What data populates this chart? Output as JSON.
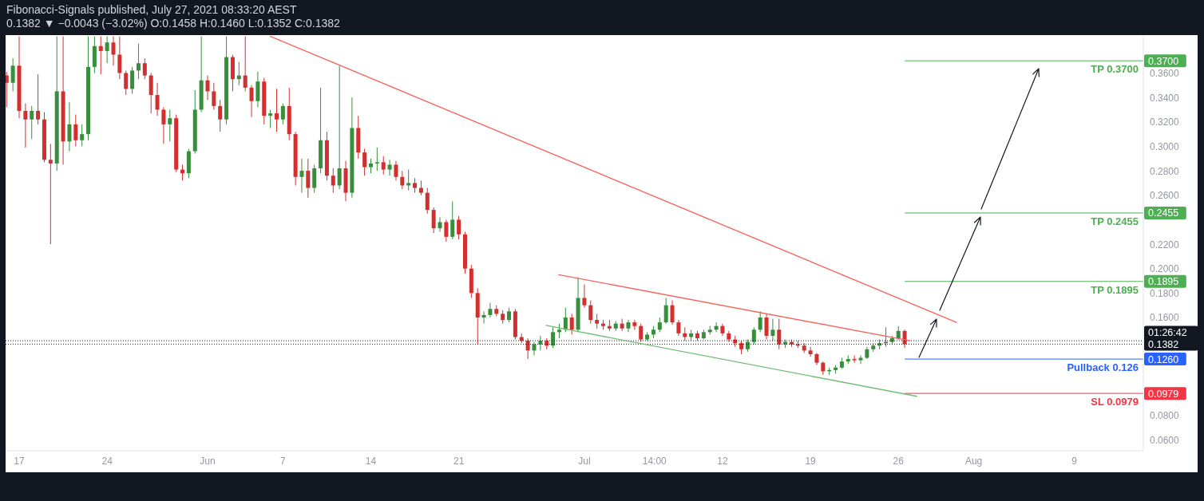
{
  "chart_data": {
    "type": "candlestick",
    "title": "Fibonacci-Signals published, July 27, 2021 08:33:20 AEST",
    "subtitle": "0.1382 ▼ −0.0043 (−3.02%) O:0.1458 H:0.1460 L:0.1352 C:0.1382",
    "x": [
      "2021-05-16T00:00",
      "2021-05-16T12:00",
      "2021-05-17T00:00",
      "2021-05-17T12:00",
      "2021-05-18T00:00",
      "2021-05-18T12:00",
      "2021-05-19T00:00",
      "2021-05-19T12:00",
      "2021-05-20T00:00",
      "2021-05-20T12:00",
      "2021-05-21T00:00",
      "2021-05-21T12:00",
      "2021-05-22T00:00",
      "2021-05-22T12:00",
      "2021-05-23T00:00",
      "2021-05-23T12:00",
      "2021-05-24T00:00",
      "2021-05-24T12:00",
      "2021-05-25T00:00",
      "2021-05-25T12:00",
      "2021-05-26T00:00",
      "2021-05-26T12:00",
      "2021-05-27T00:00",
      "2021-05-27T12:00",
      "2021-05-28T00:00",
      "2021-05-28T12:00",
      "2021-05-29T00:00",
      "2021-05-29T12:00",
      "2021-05-30T00:00",
      "2021-05-30T12:00",
      "2021-05-31T00:00",
      "2021-05-31T12:00",
      "2021-06-01T00:00",
      "2021-06-01T12:00",
      "2021-06-02T00:00",
      "2021-06-02T12:00",
      "2021-06-03T00:00",
      "2021-06-03T12:00",
      "2021-06-04T00:00",
      "2021-06-04T12:00",
      "2021-06-05T00:00",
      "2021-06-05T12:00",
      "2021-06-06T00:00",
      "2021-06-06T12:00",
      "2021-06-07T00:00",
      "2021-06-07T12:00",
      "2021-06-08T00:00",
      "2021-06-08T12:00",
      "2021-06-09T00:00",
      "2021-06-09T12:00",
      "2021-06-10T00:00",
      "2021-06-10T12:00",
      "2021-06-11T00:00",
      "2021-06-11T12:00",
      "2021-06-12T00:00",
      "2021-06-12T12:00",
      "2021-06-13T00:00",
      "2021-06-13T12:00",
      "2021-06-14T00:00",
      "2021-06-14T12:00",
      "2021-06-15T00:00",
      "2021-06-15T12:00",
      "2021-06-16T00:00",
      "2021-06-16T12:00",
      "2021-06-17T00:00",
      "2021-06-17T12:00",
      "2021-06-18T00:00",
      "2021-06-18T12:00",
      "2021-06-19T00:00",
      "2021-06-19T12:00",
      "2021-06-20T00:00",
      "2021-06-20T12:00",
      "2021-06-21T00:00",
      "2021-06-21T12:00",
      "2021-06-22T00:00",
      "2021-06-22T12:00",
      "2021-06-23T00:00",
      "2021-06-23T12:00",
      "2021-06-24T00:00",
      "2021-06-24T12:00",
      "2021-06-25T00:00",
      "2021-06-25T12:00",
      "2021-06-26T00:00",
      "2021-06-26T12:00",
      "2021-06-27T00:00",
      "2021-06-27T12:00",
      "2021-06-28T00:00",
      "2021-06-28T12:00",
      "2021-06-29T00:00",
      "2021-06-29T12:00",
      "2021-06-30T00:00",
      "2021-06-30T12:00",
      "2021-07-01T00:00",
      "2021-07-01T12:00",
      "2021-07-02T00:00",
      "2021-07-02T12:00",
      "2021-07-03T00:00",
      "2021-07-03T12:00",
      "2021-07-04T00:00",
      "2021-07-04T12:00",
      "2021-07-05T00:00",
      "2021-07-05T12:00",
      "2021-07-06T00:00",
      "2021-07-06T12:00",
      "2021-07-07T00:00",
      "2021-07-07T12:00",
      "2021-07-08T00:00",
      "2021-07-08T12:00",
      "2021-07-09T00:00",
      "2021-07-09T12:00",
      "2021-07-10T00:00",
      "2021-07-10T12:00",
      "2021-07-11T00:00",
      "2021-07-11T12:00",
      "2021-07-12T00:00",
      "2021-07-12T12:00",
      "2021-07-13T00:00",
      "2021-07-13T12:00",
      "2021-07-14T00:00",
      "2021-07-14T12:00",
      "2021-07-15T00:00",
      "2021-07-15T12:00",
      "2021-07-16T00:00",
      "2021-07-16T12:00",
      "2021-07-17T00:00",
      "2021-07-17T12:00",
      "2021-07-18T00:00",
      "2021-07-18T12:00",
      "2021-07-19T00:00",
      "2021-07-19T12:00",
      "2021-07-20T00:00",
      "2021-07-20T12:00",
      "2021-07-21T00:00",
      "2021-07-21T12:00",
      "2021-07-22T00:00",
      "2021-07-22T12:00",
      "2021-07-23T00:00",
      "2021-07-23T12:00",
      "2021-07-24T00:00",
      "2021-07-24T12:00",
      "2021-07-25T00:00",
      "2021-07-25T12:00",
      "2021-07-26T00:00",
      "2021-07-26T12:00"
    ],
    "ohlc": [
      [
        0.358,
        0.361,
        0.332,
        0.352
      ],
      [
        0.352,
        0.372,
        0.345,
        0.366
      ],
      [
        0.366,
        0.39,
        0.323,
        0.329
      ],
      [
        0.329,
        0.335,
        0.299,
        0.322
      ],
      [
        0.322,
        0.333,
        0.306,
        0.329
      ],
      [
        0.329,
        0.359,
        0.318,
        0.322
      ],
      [
        0.322,
        0.328,
        0.287,
        0.289
      ],
      [
        0.289,
        0.302,
        0.22,
        0.286
      ],
      [
        0.286,
        0.39,
        0.28,
        0.345
      ],
      [
        0.345,
        0.39,
        0.285,
        0.304
      ],
      [
        0.304,
        0.336,
        0.296,
        0.318
      ],
      [
        0.318,
        0.326,
        0.3,
        0.305
      ],
      [
        0.305,
        0.318,
        0.3,
        0.31
      ],
      [
        0.31,
        0.39,
        0.305,
        0.365
      ],
      [
        0.365,
        0.39,
        0.36,
        0.382
      ],
      [
        0.382,
        0.39,
        0.359,
        0.378
      ],
      [
        0.378,
        0.39,
        0.368,
        0.385
      ],
      [
        0.385,
        0.39,
        0.366,
        0.375
      ],
      [
        0.375,
        0.39,
        0.355,
        0.36
      ],
      [
        0.36,
        0.362,
        0.342,
        0.347
      ],
      [
        0.347,
        0.365,
        0.343,
        0.362
      ],
      [
        0.362,
        0.384,
        0.355,
        0.368
      ],
      [
        0.368,
        0.372,
        0.355,
        0.358
      ],
      [
        0.358,
        0.36,
        0.327,
        0.342
      ],
      [
        0.342,
        0.352,
        0.325,
        0.33
      ],
      [
        0.33,
        0.332,
        0.302,
        0.318
      ],
      [
        0.318,
        0.33,
        0.304,
        0.323
      ],
      [
        0.323,
        0.326,
        0.279,
        0.281
      ],
      [
        0.281,
        0.285,
        0.272,
        0.278
      ],
      [
        0.278,
        0.298,
        0.274,
        0.296
      ],
      [
        0.296,
        0.346,
        0.294,
        0.33
      ],
      [
        0.33,
        0.39,
        0.328,
        0.354
      ],
      [
        0.354,
        0.358,
        0.338,
        0.345
      ],
      [
        0.345,
        0.352,
        0.33,
        0.333
      ],
      [
        0.333,
        0.338,
        0.312,
        0.322
      ],
      [
        0.322,
        0.39,
        0.318,
        0.373
      ],
      [
        0.373,
        0.375,
        0.345,
        0.355
      ],
      [
        0.355,
        0.369,
        0.35,
        0.358
      ],
      [
        0.358,
        0.39,
        0.345,
        0.348
      ],
      [
        0.348,
        0.35,
        0.324,
        0.337
      ],
      [
        0.337,
        0.361,
        0.332,
        0.353
      ],
      [
        0.353,
        0.356,
        0.318,
        0.325
      ],
      [
        0.325,
        0.33,
        0.315,
        0.327
      ],
      [
        0.327,
        0.347,
        0.312,
        0.322
      ],
      [
        0.322,
        0.335,
        0.318,
        0.333
      ],
      [
        0.333,
        0.348,
        0.305,
        0.31
      ],
      [
        0.31,
        0.312,
        0.268,
        0.275
      ],
      [
        0.275,
        0.29,
        0.262,
        0.28
      ],
      [
        0.28,
        0.29,
        0.258,
        0.266
      ],
      [
        0.266,
        0.285,
        0.262,
        0.282
      ],
      [
        0.282,
        0.348,
        0.278,
        0.305
      ],
      [
        0.305,
        0.312,
        0.272,
        0.276
      ],
      [
        0.276,
        0.282,
        0.262,
        0.268
      ],
      [
        0.268,
        0.366,
        0.265,
        0.282
      ],
      [
        0.282,
        0.288,
        0.255,
        0.262
      ],
      [
        0.262,
        0.34,
        0.258,
        0.315
      ],
      [
        0.315,
        0.325,
        0.29,
        0.295
      ],
      [
        0.295,
        0.298,
        0.276,
        0.283
      ],
      [
        0.283,
        0.29,
        0.278,
        0.286
      ],
      [
        0.286,
        0.299,
        0.28,
        0.287
      ],
      [
        0.287,
        0.292,
        0.277,
        0.281
      ],
      [
        0.281,
        0.289,
        0.276,
        0.285
      ],
      [
        0.285,
        0.288,
        0.272,
        0.275
      ],
      [
        0.275,
        0.28,
        0.265,
        0.268
      ],
      [
        0.268,
        0.281,
        0.264,
        0.27
      ],
      [
        0.27,
        0.274,
        0.262,
        0.266
      ],
      [
        0.266,
        0.272,
        0.26,
        0.262
      ],
      [
        0.262,
        0.266,
        0.245,
        0.248
      ],
      [
        0.248,
        0.25,
        0.229,
        0.233
      ],
      [
        0.233,
        0.242,
        0.23,
        0.238
      ],
      [
        0.238,
        0.24,
        0.222,
        0.226
      ],
      [
        0.226,
        0.255,
        0.224,
        0.24
      ],
      [
        0.24,
        0.243,
        0.224,
        0.228
      ],
      [
        0.228,
        0.23,
        0.196,
        0.2
      ],
      [
        0.2,
        0.203,
        0.176,
        0.18
      ],
      [
        0.18,
        0.184,
        0.138,
        0.16
      ],
      [
        0.16,
        0.165,
        0.155,
        0.162
      ],
      [
        0.162,
        0.172,
        0.16,
        0.167
      ],
      [
        0.167,
        0.17,
        0.161,
        0.163
      ],
      [
        0.163,
        0.166,
        0.155,
        0.158
      ],
      [
        0.158,
        0.168,
        0.156,
        0.165
      ],
      [
        0.165,
        0.167,
        0.142,
        0.144
      ],
      [
        0.144,
        0.147,
        0.139,
        0.141
      ],
      [
        0.141,
        0.143,
        0.126,
        0.133
      ],
      [
        0.133,
        0.14,
        0.129,
        0.138
      ],
      [
        0.138,
        0.145,
        0.133,
        0.141
      ],
      [
        0.141,
        0.143,
        0.134,
        0.137
      ],
      [
        0.137,
        0.152,
        0.135,
        0.148
      ],
      [
        0.148,
        0.155,
        0.143,
        0.15
      ],
      [
        0.15,
        0.168,
        0.148,
        0.16
      ],
      [
        0.16,
        0.163,
        0.146,
        0.15
      ],
      [
        0.15,
        0.193,
        0.148,
        0.176
      ],
      [
        0.176,
        0.187,
        0.168,
        0.17
      ],
      [
        0.17,
        0.174,
        0.155,
        0.158
      ],
      [
        0.158,
        0.163,
        0.151,
        0.155
      ],
      [
        0.155,
        0.158,
        0.15,
        0.153
      ],
      [
        0.153,
        0.158,
        0.149,
        0.151
      ],
      [
        0.151,
        0.157,
        0.149,
        0.155
      ],
      [
        0.155,
        0.159,
        0.149,
        0.151
      ],
      [
        0.151,
        0.158,
        0.148,
        0.156
      ],
      [
        0.156,
        0.158,
        0.15,
        0.153
      ],
      [
        0.153,
        0.155,
        0.14,
        0.142
      ],
      [
        0.142,
        0.148,
        0.141,
        0.146
      ],
      [
        0.146,
        0.153,
        0.143,
        0.15
      ],
      [
        0.15,
        0.16,
        0.148,
        0.156
      ],
      [
        0.156,
        0.176,
        0.155,
        0.17
      ],
      [
        0.17,
        0.174,
        0.154,
        0.156
      ],
      [
        0.156,
        0.158,
        0.145,
        0.147
      ],
      [
        0.147,
        0.152,
        0.141,
        0.144
      ],
      [
        0.144,
        0.15,
        0.141,
        0.147
      ],
      [
        0.147,
        0.149,
        0.141,
        0.143
      ],
      [
        0.143,
        0.15,
        0.142,
        0.148
      ],
      [
        0.148,
        0.153,
        0.146,
        0.15
      ],
      [
        0.15,
        0.156,
        0.148,
        0.153
      ],
      [
        0.153,
        0.155,
        0.145,
        0.147
      ],
      [
        0.147,
        0.149,
        0.14,
        0.142
      ],
      [
        0.142,
        0.145,
        0.136,
        0.139
      ],
      [
        0.139,
        0.141,
        0.13,
        0.134
      ],
      [
        0.134,
        0.142,
        0.132,
        0.14
      ],
      [
        0.14,
        0.152,
        0.138,
        0.15
      ],
      [
        0.15,
        0.165,
        0.148,
        0.16
      ],
      [
        0.16,
        0.163,
        0.142,
        0.145
      ],
      [
        0.145,
        0.159,
        0.141,
        0.15
      ],
      [
        0.15,
        0.159,
        0.134,
        0.138
      ],
      [
        0.138,
        0.142,
        0.135,
        0.14
      ],
      [
        0.14,
        0.142,
        0.136,
        0.138
      ],
      [
        0.138,
        0.141,
        0.135,
        0.137
      ],
      [
        0.137,
        0.139,
        0.131,
        0.133
      ],
      [
        0.133,
        0.136,
        0.128,
        0.13
      ],
      [
        0.13,
        0.131,
        0.121,
        0.123
      ],
      [
        0.123,
        0.124,
        0.113,
        0.116
      ],
      [
        0.116,
        0.119,
        0.113,
        0.117
      ],
      [
        0.117,
        0.121,
        0.114,
        0.119
      ],
      [
        0.119,
        0.127,
        0.118,
        0.124
      ],
      [
        0.124,
        0.129,
        0.122,
        0.126
      ],
      [
        0.126,
        0.129,
        0.123,
        0.125
      ],
      [
        0.125,
        0.129,
        0.122,
        0.127
      ],
      [
        0.127,
        0.136,
        0.126,
        0.134
      ],
      [
        0.134,
        0.139,
        0.132,
        0.137
      ],
      [
        0.137,
        0.142,
        0.134,
        0.139
      ],
      [
        0.139,
        0.152,
        0.136,
        0.14
      ],
      [
        0.14,
        0.145,
        0.138,
        0.143
      ],
      [
        0.143,
        0.153,
        0.142,
        0.149
      ],
      [
        0.149,
        0.15,
        0.135,
        0.1382
      ]
    ],
    "colors": [
      "#d32f2f",
      "#388e3c",
      "#d32f2f",
      "#d32f2f",
      "#388e3c",
      "#d32f2f",
      "#d32f2f",
      "#d32f2f",
      "#388e3c",
      "#d32f2f",
      "#388e3c",
      "#d32f2f",
      "#388e3c",
      "#388e3c",
      "#388e3c",
      "#d32f2f",
      "#388e3c",
      "#d32f2f",
      "#d32f2f",
      "#d32f2f",
      "#388e3c",
      "#388e3c",
      "#d32f2f",
      "#d32f2f",
      "#d32f2f",
      "#d32f2f",
      "#388e3c",
      "#d32f2f",
      "#d32f2f",
      "#388e3c",
      "#388e3c",
      "#388e3c",
      "#d32f2f",
      "#d32f2f",
      "#d32f2f",
      "#388e3c",
      "#d32f2f",
      "#388e3c",
      "#d32f2f",
      "#d32f2f",
      "#388e3c",
      "#d32f2f",
      "#388e3c",
      "#d32f2f",
      "#388e3c",
      "#d32f2f",
      "#d32f2f",
      "#388e3c",
      "#d32f2f",
      "#388e3c",
      "#388e3c",
      "#d32f2f",
      "#d32f2f",
      "#388e3c",
      "#d32f2f",
      "#388e3c",
      "#d32f2f",
      "#d32f2f",
      "#388e3c",
      "#388e3c",
      "#d32f2f",
      "#388e3c",
      "#d32f2f",
      "#d32f2f",
      "#388e3c",
      "#d32f2f",
      "#d32f2f",
      "#d32f2f",
      "#d32f2f",
      "#388e3c",
      "#d32f2f",
      "#388e3c",
      "#d32f2f",
      "#d32f2f",
      "#d32f2f",
      "#d32f2f",
      "#388e3c",
      "#388e3c",
      "#d32f2f",
      "#d32f2f",
      "#388e3c",
      "#d32f2f",
      "#d32f2f",
      "#d32f2f",
      "#388e3c",
      "#388e3c",
      "#d32f2f",
      "#388e3c",
      "#388e3c",
      "#388e3c",
      "#d32f2f",
      "#388e3c",
      "#d32f2f",
      "#d32f2f",
      "#d32f2f",
      "#d32f2f",
      "#d32f2f",
      "#388e3c",
      "#d32f2f",
      "#388e3c",
      "#d32f2f",
      "#d32f2f",
      "#388e3c",
      "#388e3c",
      "#388e3c",
      "#388e3c",
      "#d32f2f",
      "#d32f2f",
      "#d32f2f",
      "#388e3c",
      "#d32f2f",
      "#388e3c",
      "#388e3c",
      "#388e3c",
      "#d32f2f",
      "#d32f2f",
      "#d32f2f",
      "#d32f2f",
      "#388e3c",
      "#388e3c",
      "#388e3c",
      "#d32f2f",
      "#388e3c",
      "#d32f2f",
      "#388e3c",
      "#d32f2f",
      "#d32f2f",
      "#d32f2f",
      "#d32f2f",
      "#d32f2f",
      "#d32f2f",
      "#388e3c",
      "#388e3c",
      "#388e3c",
      "#388e3c",
      "#d32f2f",
      "#388e3c",
      "#388e3c",
      "#388e3c",
      "#388e3c",
      "#388e3c",
      "#388e3c",
      "#388e3c",
      "#d32f2f"
    ],
    "series": [
      {
        "type": "line",
        "x": [
          "2021-06-06T00:00",
          "2021-07-30T15:00"
        ],
        "values": [
          0.39,
          0.156
        ],
        "color": "#f4665e"
      },
      {
        "type": "line",
        "x": [
          "2021-06-28T23:00",
          "2021-07-26T22:00"
        ],
        "values": [
          0.195,
          0.141
        ],
        "color": "#f4665e"
      },
      {
        "type": "line",
        "x": [
          "2021-06-27T23:00",
          "2021-07-27T11:00"
        ],
        "values": [
          0.1535,
          0.0955
        ],
        "color": "#6fbf73"
      }
    ],
    "xlim": [
      "2021-05-15T22:00",
      "2021-08-14T12:00"
    ],
    "xticks": [
      {
        "value": "2021-05-17",
        "label": "17"
      },
      {
        "value": "2021-05-24",
        "label": "24"
      },
      {
        "value": "2021-06-01",
        "label": "Jun"
      },
      {
        "value": "2021-06-07",
        "label": "7"
      },
      {
        "value": "2021-06-14",
        "label": "14"
      },
      {
        "value": "2021-06-21",
        "label": "21"
      },
      {
        "value": "2021-07-01",
        "label": "Jul"
      },
      {
        "value": "2021-07-06T14:00",
        "label": "14:00"
      },
      {
        "value": "2021-07-12",
        "label": "12"
      },
      {
        "value": "2021-07-19",
        "label": "19"
      },
      {
        "value": "2021-07-26",
        "label": "26"
      },
      {
        "value": "2021-08-01",
        "label": "Aug"
      },
      {
        "value": "2021-08-09",
        "label": "9"
      }
    ],
    "ylim": [
      0.051,
      0.391
    ],
    "yticks": [
      {
        "value": 0.06,
        "label": "0.0600"
      },
      {
        "value": 0.08,
        "label": "0.0800"
      },
      {
        "value": 0.0979,
        "label": "0.0979"
      },
      {
        "value": 0.126,
        "label": "0.1260"
      },
      {
        "value": 0.1382,
        "label": "0.1382"
      },
      {
        "value": 0.16,
        "label": "0.1600"
      },
      {
        "value": 0.18,
        "label": "0.1800"
      },
      {
        "value": 0.1895,
        "label": "0.1895"
      },
      {
        "value": 0.2,
        "label": "0.2000"
      },
      {
        "value": 0.22,
        "label": "0.2200"
      },
      {
        "value": 0.2455,
        "label": "0.2455"
      },
      {
        "value": 0.26,
        "label": "0.2600"
      },
      {
        "value": 0.28,
        "label": "0.2800"
      },
      {
        "value": 0.3,
        "label": "0.3000"
      },
      {
        "value": 0.32,
        "label": "0.3200"
      },
      {
        "value": 0.34,
        "label": "0.3400"
      },
      {
        "value": 0.36,
        "label": "0.3600"
      },
      {
        "value": 0.37,
        "label": "0.3700"
      }
    ],
    "ref_lines": [
      {
        "axis": "y",
        "value": 0.37,
        "label": "TP 0.3700",
        "color": "#4caf50"
      },
      {
        "axis": "y",
        "value": 0.2455,
        "label": "TP 0.2455",
        "color": "#4caf50"
      },
      {
        "axis": "y",
        "value": 0.1895,
        "label": "TP 0.1895",
        "color": "#4caf50"
      },
      {
        "axis": "y",
        "value": 0.126,
        "label": "Pullback 0.126",
        "color": "#2962ff"
      },
      {
        "axis": "y",
        "value": 0.0979,
        "label": "SL 0.0979",
        "color": "#f23645"
      },
      {
        "axis": "y",
        "value": 0.141,
        "color": "#131722",
        "line_style": "dotted"
      },
      {
        "axis": "y",
        "value": 0.1382,
        "color": "#131722",
        "line_style": "dotted"
      }
    ],
    "annotations": [
      "01:26:42"
    ]
  }
}
